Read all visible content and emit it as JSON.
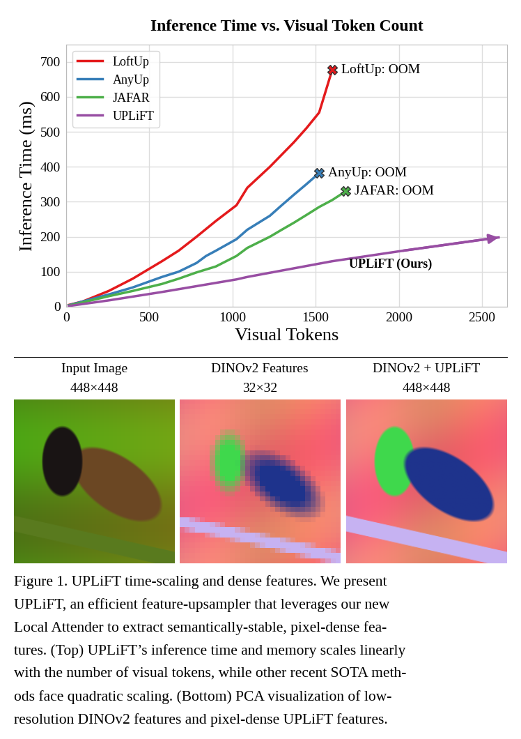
{
  "chart_data": {
    "type": "line",
    "title": "Inference Time vs. Visual Token Count",
    "x_label": "Visual Tokens",
    "y_label": "Inference Time (ms)",
    "xlim": [
      0,
      2650
    ],
    "ylim": [
      0,
      750
    ],
    "xticks": [
      0,
      500,
      1000,
      1500,
      2000,
      2500
    ],
    "yticks": [
      0,
      100,
      200,
      300,
      400,
      500,
      600,
      700
    ],
    "grid": true,
    "legend": "upper left",
    "series": [
      {
        "name": "LoftUp",
        "color": "#e41a1c",
        "marker": "X",
        "annotation": "LoftUp: OOM",
        "x": [
          16,
          100,
          256,
          400,
          576,
          676,
          784,
          900,
          1024,
          1089,
          1225,
          1369,
          1444,
          1521,
          1600
        ],
        "values": [
          5,
          15,
          45,
          80,
          130,
          160,
          200,
          245,
          290,
          340,
          400,
          470,
          510,
          555,
          678
        ]
      },
      {
        "name": "AnyUp",
        "color": "#377eb8",
        "marker": "X",
        "annotation": "AnyUp: OOM",
        "x": [
          16,
          256,
          400,
          576,
          676,
          784,
          841,
          900,
          1024,
          1089,
          1225,
          1296,
          1369,
          1444,
          1521
        ],
        "values": [
          4,
          35,
          55,
          85,
          100,
          125,
          145,
          160,
          193,
          220,
          260,
          290,
          320,
          350,
          382
        ]
      },
      {
        "name": "JAFAR",
        "color": "#4daf4a",
        "marker": "X",
        "annotation": "JAFAR: OOM",
        "x": [
          16,
          256,
          400,
          576,
          676,
          784,
          900,
          1024,
          1089,
          1225,
          1296,
          1369,
          1444,
          1521,
          1600,
          1681
        ],
        "values": [
          3,
          30,
          45,
          65,
          80,
          98,
          115,
          145,
          168,
          200,
          220,
          240,
          262,
          285,
          305,
          330
        ]
      },
      {
        "name": "UPLiFT",
        "color": "#984ea3",
        "marker": "arrow",
        "annotation": "UPLiFT (Ours)",
        "x": [
          16,
          256,
          576,
          1024,
          1089,
          1600,
          2025,
          2600
        ],
        "values": [
          2,
          18,
          42,
          78,
          85,
          130,
          160,
          198
        ]
      }
    ]
  },
  "panels": [
    {
      "title": "Input Image",
      "size": "448×448"
    },
    {
      "title": "DINOv2 Features",
      "size": "32×32"
    },
    {
      "title": "DINOv2 + UPLiFT",
      "size": "448×448"
    }
  ],
  "caption": [
    "Figure 1. UPLiFT time-scaling and dense features. We present",
    "UPLiFT, an efficient feature-upsampler that leverages our new",
    "Local Attender to extract semantically-stable, pixel-dense fea-",
    "tures. (Top) UPLiFT’s inference time and memory scales linearly",
    "with the number of visual tokens, while other recent SOTA meth-",
    "ods face quadratic scaling. (Bottom) PCA visualization of low-",
    "resolution DINOv2 features and pixel-dense UPLiFT features."
  ]
}
